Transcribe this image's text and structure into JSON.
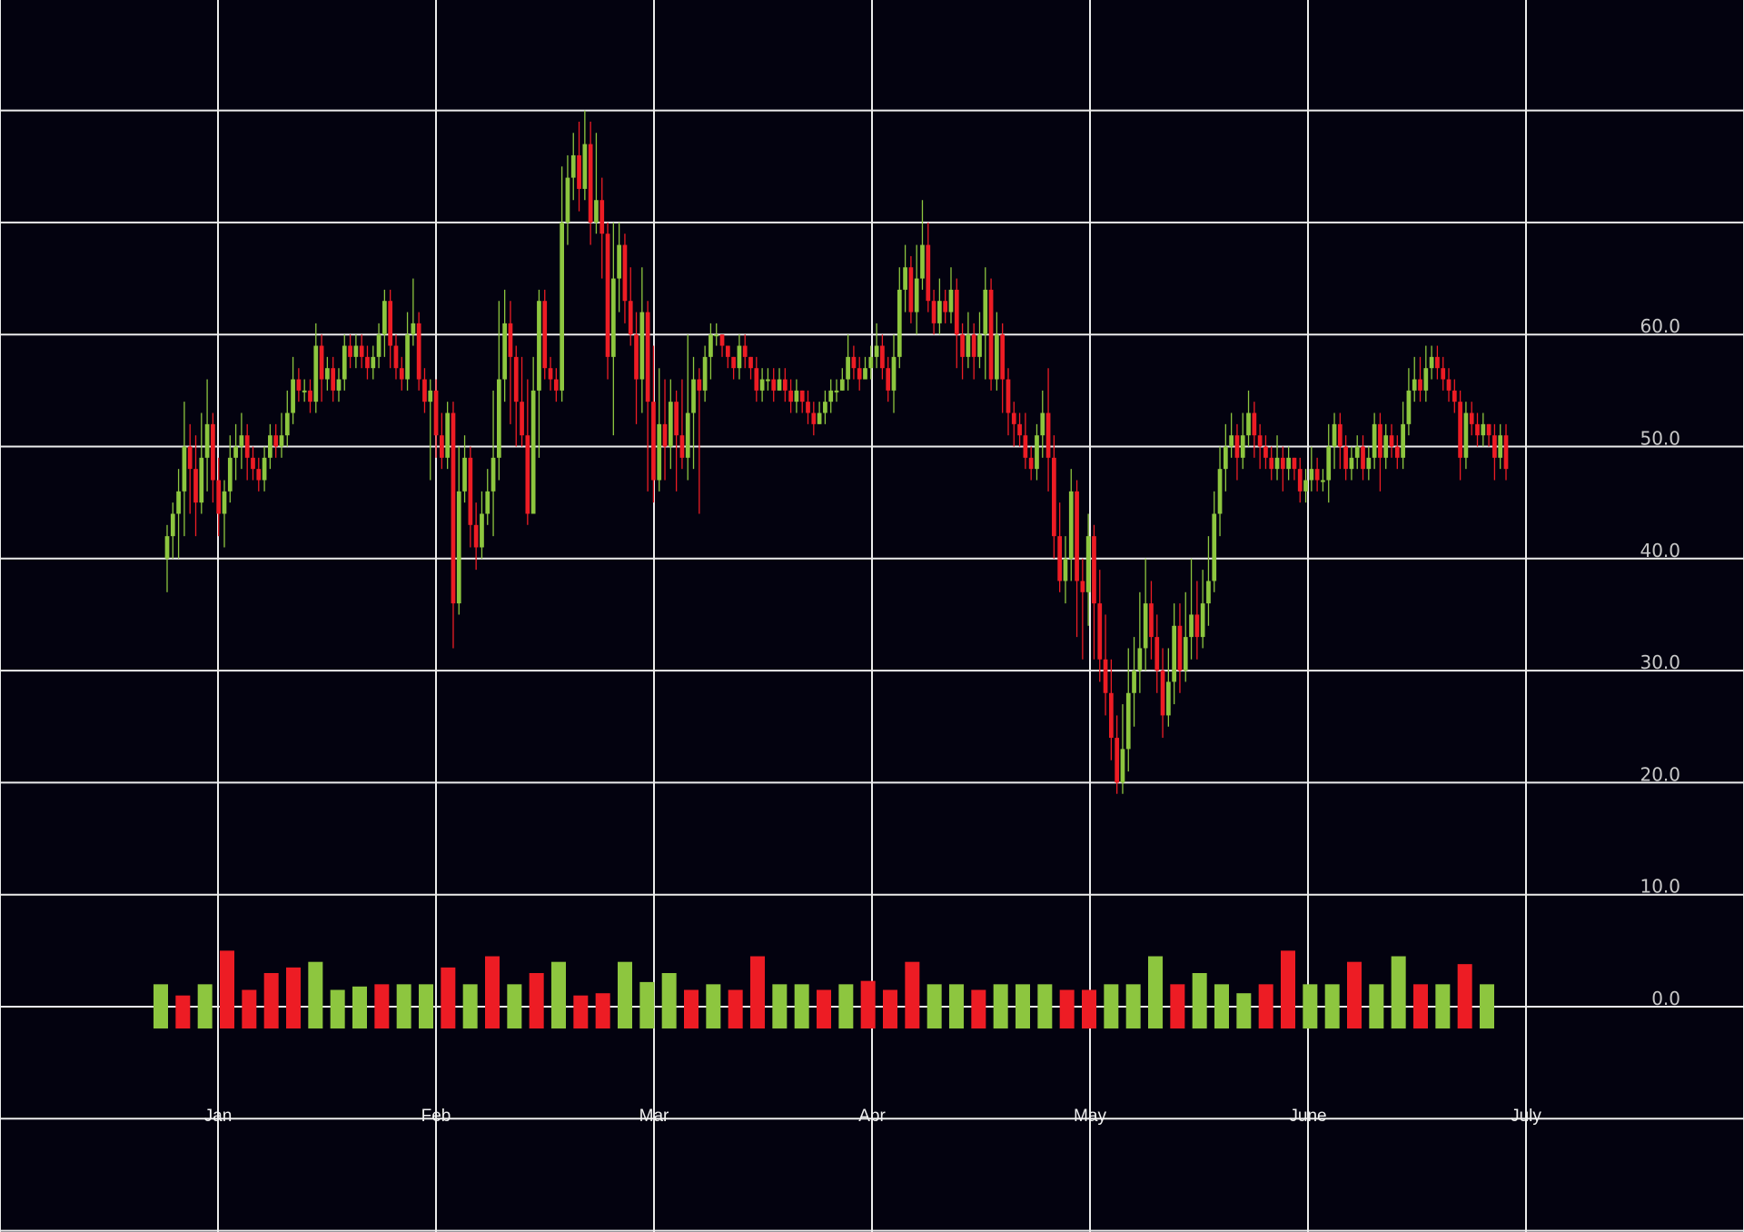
{
  "colors": {
    "background": "#000000",
    "plot_background": "#03020f",
    "grid": "#ececec",
    "up": "#8dc63f",
    "down": "#ed1c24",
    "axis_text": "#c8c8c8"
  },
  "chart_data": {
    "type": "candlestick",
    "title": "",
    "xlabel": "",
    "ylabel": "",
    "grid": true,
    "ylim": [
      -10,
      80
    ],
    "y_ticks": [
      0,
      10,
      20,
      30,
      40,
      50,
      60
    ],
    "y_tick_labels": [
      "0.0",
      "10.0",
      "20.0",
      "30.0",
      "40.0",
      "50.0",
      "60.0"
    ],
    "x_tick_labels": [
      "Jan",
      "Feb",
      "Mar",
      "Apr",
      "May",
      "June",
      "July"
    ],
    "candles": [
      [
        40,
        42,
        43,
        37
      ],
      [
        42,
        44,
        45,
        40
      ],
      [
        44,
        46,
        48,
        40
      ],
      [
        46,
        50,
        54,
        42
      ],
      [
        50,
        48,
        52,
        44
      ],
      [
        48,
        45,
        51,
        42
      ],
      [
        45,
        49,
        53,
        44
      ],
      [
        49,
        52,
        56,
        46
      ],
      [
        52,
        47,
        53,
        45
      ],
      [
        47,
        44,
        49,
        42
      ],
      [
        44,
        46,
        47,
        41
      ],
      [
        46,
        49,
        51,
        45
      ],
      [
        49,
        50,
        52,
        47
      ],
      [
        50,
        51,
        53,
        48
      ],
      [
        51,
        49,
        52,
        47
      ],
      [
        49,
        48,
        50,
        47
      ],
      [
        48,
        47,
        49,
        46
      ],
      [
        47,
        49,
        50,
        46
      ],
      [
        49,
        51,
        52,
        48
      ],
      [
        51,
        50,
        52,
        49
      ],
      [
        50,
        51,
        53,
        49
      ],
      [
        51,
        53,
        55,
        50
      ],
      [
        53,
        56,
        58,
        52
      ],
      [
        56,
        55,
        57,
        54
      ],
      [
        55,
        55,
        56,
        54
      ],
      [
        55,
        54,
        56,
        53
      ],
      [
        54,
        59,
        61,
        53
      ],
      [
        59,
        56,
        60,
        54
      ],
      [
        56,
        57,
        58,
        55
      ],
      [
        57,
        55,
        58,
        54
      ],
      [
        55,
        56,
        57,
        54
      ],
      [
        56,
        59,
        60,
        55
      ],
      [
        59,
        58,
        60,
        57
      ],
      [
        58,
        59,
        60,
        57
      ],
      [
        59,
        58,
        60,
        57
      ],
      [
        58,
        57,
        59,
        56
      ],
      [
        57,
        58,
        59,
        56
      ],
      [
        58,
        60,
        61,
        57
      ],
      [
        60,
        63,
        64,
        58
      ],
      [
        63,
        59,
        64,
        57
      ],
      [
        59,
        57,
        60,
        56
      ],
      [
        57,
        56,
        58,
        55
      ],
      [
        56,
        60,
        62,
        55
      ],
      [
        60,
        61,
        65,
        59
      ],
      [
        61,
        56,
        62,
        55
      ],
      [
        56,
        54,
        57,
        53
      ],
      [
        54,
        55,
        56,
        47
      ],
      [
        55,
        51,
        56,
        49
      ],
      [
        51,
        49,
        53,
        48
      ],
      [
        49,
        53,
        54,
        48
      ],
      [
        53,
        36,
        54,
        32
      ],
      [
        36,
        46,
        50,
        35
      ],
      [
        46,
        49,
        51,
        45
      ],
      [
        49,
        43,
        50,
        41
      ],
      [
        43,
        41,
        45,
        39
      ],
      [
        41,
        44,
        46,
        40
      ],
      [
        44,
        46,
        48,
        43
      ],
      [
        46,
        49,
        55,
        42
      ],
      [
        49,
        56,
        63,
        47
      ],
      [
        56,
        61,
        64,
        54
      ],
      [
        61,
        58,
        63,
        52
      ],
      [
        58,
        54,
        59,
        50
      ],
      [
        54,
        51,
        58,
        50
      ],
      [
        51,
        44,
        56,
        43
      ],
      [
        44,
        55,
        58,
        45
      ],
      [
        55,
        63,
        64,
        49
      ],
      [
        63,
        57,
        64,
        56
      ],
      [
        57,
        56,
        58,
        55
      ],
      [
        56,
        55,
        57,
        54
      ],
      [
        55,
        70,
        75,
        54
      ],
      [
        70,
        74,
        76,
        68
      ],
      [
        74,
        76,
        78,
        72
      ],
      [
        76,
        73,
        79,
        71
      ],
      [
        73,
        77,
        80,
        72
      ],
      [
        77,
        70,
        79,
        68
      ],
      [
        70,
        72,
        78,
        69
      ],
      [
        72,
        69,
        74,
        65
      ],
      [
        69,
        58,
        70,
        56
      ],
      [
        58,
        65,
        70,
        51
      ],
      [
        65,
        68,
        70,
        62
      ],
      [
        68,
        63,
        69,
        61
      ],
      [
        63,
        60,
        66,
        59
      ],
      [
        60,
        56,
        62,
        52
      ],
      [
        56,
        62,
        66,
        53
      ],
      [
        62,
        54,
        63,
        46
      ],
      [
        54,
        47,
        59,
        45
      ],
      [
        47,
        52,
        57,
        46
      ],
      [
        52,
        50,
        56,
        47
      ],
      [
        50,
        54,
        56,
        48
      ],
      [
        54,
        51,
        55,
        46
      ],
      [
        51,
        49,
        56,
        48
      ],
      [
        49,
        53,
        60,
        47
      ],
      [
        53,
        56,
        58,
        48
      ],
      [
        56,
        55,
        57,
        44
      ],
      [
        55,
        58,
        59,
        54
      ],
      [
        58,
        60,
        61,
        56
      ],
      [
        60,
        60,
        61,
        59
      ],
      [
        60,
        59,
        60,
        58
      ],
      [
        59,
        58,
        59,
        57
      ],
      [
        58,
        57,
        58,
        56
      ],
      [
        57,
        59,
        60,
        56
      ],
      [
        59,
        58,
        60,
        57
      ],
      [
        58,
        57,
        58,
        56
      ],
      [
        57,
        55,
        58,
        54
      ],
      [
        55,
        56,
        57,
        54
      ],
      [
        56,
        56,
        57,
        55
      ],
      [
        56,
        55,
        57,
        54
      ],
      [
        55,
        56,
        57,
        55
      ],
      [
        56,
        55,
        57,
        54
      ],
      [
        55,
        54,
        56,
        53
      ],
      [
        54,
        55,
        56,
        53
      ],
      [
        55,
        54,
        55,
        53
      ],
      [
        54,
        53,
        55,
        52
      ],
      [
        53,
        52,
        54,
        51
      ],
      [
        52,
        53,
        54,
        52
      ],
      [
        53,
        54,
        55,
        52
      ],
      [
        54,
        55,
        56,
        53
      ],
      [
        55,
        55,
        56,
        54
      ],
      [
        55,
        56,
        57,
        55
      ],
      [
        56,
        58,
        60,
        55
      ],
      [
        58,
        57,
        59,
        56
      ],
      [
        57,
        56,
        58,
        55
      ],
      [
        56,
        57,
        58,
        56
      ],
      [
        57,
        58,
        59,
        56
      ],
      [
        58,
        59,
        61,
        57
      ],
      [
        59,
        57,
        60,
        56
      ],
      [
        57,
        55,
        58,
        54
      ],
      [
        55,
        58,
        60,
        53
      ],
      [
        58,
        64,
        66,
        57
      ],
      [
        64,
        66,
        68,
        62
      ],
      [
        66,
        62,
        67,
        61
      ],
      [
        62,
        65,
        68,
        60
      ],
      [
        65,
        68,
        72,
        64
      ],
      [
        68,
        63,
        70,
        62
      ],
      [
        63,
        61,
        64,
        60
      ],
      [
        61,
        63,
        65,
        60
      ],
      [
        63,
        62,
        64,
        61
      ],
      [
        62,
        64,
        66,
        61
      ],
      [
        64,
        60,
        65,
        57
      ],
      [
        60,
        58,
        61,
        56
      ],
      [
        58,
        60,
        62,
        57
      ],
      [
        60,
        58,
        61,
        56
      ],
      [
        58,
        60,
        62,
        57
      ],
      [
        60,
        64,
        66,
        56
      ],
      [
        64,
        56,
        65,
        55
      ],
      [
        56,
        60,
        62,
        55
      ],
      [
        60,
        56,
        61,
        53
      ],
      [
        56,
        53,
        57,
        51
      ],
      [
        53,
        52,
        54,
        50
      ],
      [
        52,
        51,
        53,
        50
      ],
      [
        51,
        49,
        53,
        48
      ],
      [
        49,
        48,
        50,
        47
      ],
      [
        48,
        51,
        52,
        47
      ],
      [
        51,
        53,
        55,
        49
      ],
      [
        53,
        49,
        57,
        46
      ],
      [
        49,
        42,
        51,
        40
      ],
      [
        42,
        38,
        45,
        37
      ],
      [
        38,
        40,
        42,
        36
      ],
      [
        40,
        46,
        48,
        38
      ],
      [
        46,
        38,
        47,
        33
      ],
      [
        38,
        37,
        40,
        31
      ],
      [
        37,
        42,
        44,
        34
      ],
      [
        42,
        36,
        43,
        31
      ],
      [
        36,
        31,
        39,
        29
      ],
      [
        31,
        28,
        35,
        26
      ],
      [
        28,
        24,
        31,
        22
      ],
      [
        24,
        20,
        26,
        19
      ],
      [
        20,
        23,
        27,
        19
      ],
      [
        23,
        28,
        32,
        21
      ],
      [
        28,
        30,
        33,
        25
      ],
      [
        30,
        32,
        37,
        28
      ],
      [
        32,
        36,
        40,
        30
      ],
      [
        36,
        33,
        38,
        31
      ],
      [
        33,
        30,
        35,
        28
      ],
      [
        30,
        26,
        32,
        24
      ],
      [
        26,
        29,
        32,
        25
      ],
      [
        29,
        34,
        36,
        27
      ],
      [
        34,
        30,
        36,
        28
      ],
      [
        30,
        33,
        37,
        29
      ],
      [
        33,
        35,
        40,
        31
      ],
      [
        35,
        33,
        38,
        31
      ],
      [
        33,
        36,
        39,
        32
      ],
      [
        36,
        38,
        42,
        34
      ],
      [
        38,
        44,
        46,
        37
      ],
      [
        44,
        48,
        50,
        42
      ],
      [
        48,
        50,
        52,
        46
      ],
      [
        50,
        51,
        53,
        49
      ],
      [
        51,
        49,
        52,
        47
      ],
      [
        49,
        51,
        53,
        48
      ],
      [
        51,
        53,
        55,
        50
      ],
      [
        53,
        51,
        54,
        49
      ],
      [
        51,
        50,
        52,
        48
      ],
      [
        50,
        49,
        51,
        48
      ],
      [
        49,
        48,
        50,
        47
      ],
      [
        48,
        49,
        51,
        47
      ],
      [
        49,
        48,
        50,
        46
      ],
      [
        48,
        49,
        50,
        47
      ],
      [
        49,
        48,
        49,
        47
      ],
      [
        48,
        46,
        49,
        45
      ],
      [
        46,
        47,
        48,
        45
      ],
      [
        47,
        48,
        50,
        46
      ],
      [
        48,
        47,
        49,
        46
      ],
      [
        47,
        47,
        48,
        46
      ],
      [
        47,
        50,
        52,
        45
      ],
      [
        50,
        52,
        53,
        48
      ],
      [
        52,
        50,
        53,
        48
      ],
      [
        50,
        48,
        51,
        47
      ],
      [
        48,
        49,
        50,
        47
      ],
      [
        49,
        50,
        51,
        48
      ],
      [
        50,
        48,
        51,
        47
      ],
      [
        48,
        49,
        50,
        47
      ],
      [
        49,
        52,
        53,
        48
      ],
      [
        52,
        49,
        53,
        46
      ],
      [
        49,
        51,
        52,
        48
      ],
      [
        51,
        50,
        52,
        49
      ],
      [
        50,
        49,
        51,
        48
      ],
      [
        49,
        52,
        54,
        48
      ],
      [
        52,
        55,
        57,
        51
      ],
      [
        55,
        56,
        58,
        54
      ],
      [
        56,
        55,
        58,
        54
      ],
      [
        55,
        57,
        59,
        54
      ],
      [
        57,
        58,
        59,
        56
      ],
      [
        58,
        57,
        59,
        56
      ],
      [
        57,
        56,
        58,
        55
      ],
      [
        56,
        55,
        57,
        54
      ],
      [
        55,
        54,
        56,
        53
      ],
      [
        54,
        49,
        55,
        47
      ],
      [
        49,
        53,
        54,
        48
      ],
      [
        53,
        52,
        54,
        51
      ],
      [
        52,
        51,
        53,
        50
      ],
      [
        51,
        52,
        53,
        50
      ],
      [
        52,
        51,
        52,
        50
      ],
      [
        51,
        49,
        52,
        47
      ],
      [
        49,
        51,
        52,
        48
      ],
      [
        51,
        48,
        52,
        47
      ]
    ],
    "volume": [
      2,
      1,
      2,
      5,
      1.5,
      3,
      3.5,
      4,
      1.5,
      1.8,
      2,
      2,
      2,
      3.5,
      2,
      4.5,
      2,
      3,
      4,
      1,
      1.2,
      4,
      2.2,
      3,
      1.5,
      2,
      1.5,
      4.5,
      2,
      2,
      1.5,
      2,
      2.3,
      1.5,
      4,
      2,
      2,
      1.5,
      2,
      2,
      2,
      1.5,
      1.5,
      2,
      2,
      4.5,
      2,
      3,
      2,
      1.2,
      2,
      5,
      2,
      2,
      4,
      2,
      4.5,
      2,
      2,
      3.8,
      2
    ],
    "volume_up": [
      true,
      false,
      true,
      false,
      false,
      false,
      false,
      true,
      true,
      true,
      false,
      true,
      true,
      false,
      true,
      false,
      true,
      false,
      true,
      false,
      false,
      true,
      true,
      true,
      false,
      true,
      false,
      false,
      true,
      true,
      false,
      true,
      false,
      false,
      false,
      true,
      true,
      false,
      true,
      true,
      true,
      false,
      false,
      true,
      true,
      true,
      false,
      true,
      true,
      true,
      false,
      false,
      true,
      true,
      false,
      true,
      true,
      false,
      true,
      false,
      true
    ]
  }
}
